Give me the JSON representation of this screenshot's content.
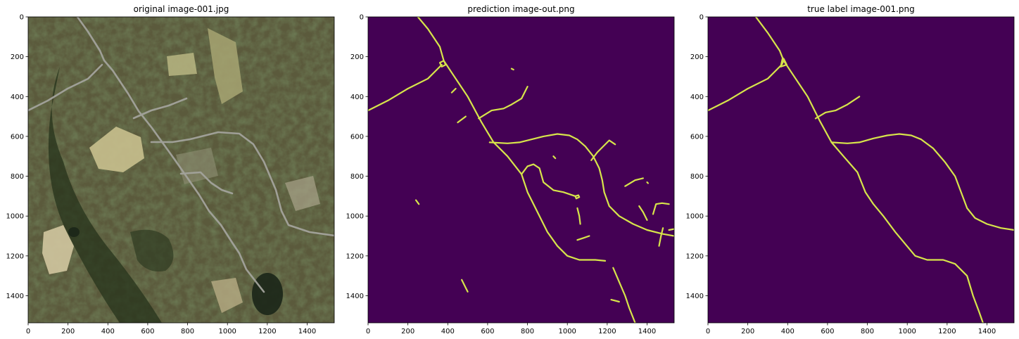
{
  "chart_data": [
    {
      "type": "image",
      "title": "original image-001.jpg",
      "xlim": [
        0,
        1536
      ],
      "ylim": [
        1536,
        0
      ],
      "xticks": [
        0,
        200,
        400,
        600,
        800,
        1000,
        1200,
        1400
      ],
      "yticks": [
        0,
        200,
        400,
        600,
        800,
        1000,
        1200,
        1400
      ],
      "content": "aerial photograph",
      "colors": {
        "field": "#c9c08e",
        "forest": "#3c4a2a",
        "roads": "#9a9a95"
      }
    },
    {
      "type": "image",
      "title": "prediction image-out.png",
      "xlim": [
        0,
        1536
      ],
      "ylim": [
        1536,
        0
      ],
      "xticks": [
        0,
        200,
        400,
        600,
        800,
        1000,
        1200,
        1400
      ],
      "yticks": [
        0,
        200,
        400,
        600,
        800,
        1000,
        1200,
        1400
      ],
      "colors": {
        "background": "#440154",
        "road": "#d7e54a"
      },
      "roads": [
        [
          [
            250,
            0
          ],
          [
            300,
            60
          ],
          [
            360,
            150
          ],
          [
            380,
            220
          ],
          [
            420,
            280
          ],
          [
            500,
            400
          ],
          [
            570,
            530
          ],
          [
            600,
            580
          ],
          [
            630,
            630
          ],
          [
            700,
            700
          ],
          [
            770,
            790
          ],
          [
            800,
            880
          ],
          [
            860,
            1000
          ],
          [
            900,
            1080
          ],
          [
            950,
            1150
          ],
          [
            1000,
            1200
          ],
          [
            1060,
            1220
          ],
          [
            1140,
            1220
          ],
          [
            1190,
            1225
          ]
        ],
        [
          [
            0,
            470
          ],
          [
            100,
            420
          ],
          [
            200,
            360
          ],
          [
            300,
            310
          ],
          [
            370,
            240
          ]
        ],
        [
          [
            380,
            220
          ],
          [
            390,
            240
          ],
          [
            370,
            250
          ],
          [
            360,
            230
          ],
          [
            380,
            220
          ]
        ],
        [
          [
            555,
            510
          ],
          [
            620,
            470
          ],
          [
            680,
            460
          ],
          [
            720,
            440
          ],
          [
            770,
            410
          ],
          [
            800,
            350
          ]
        ],
        [
          [
            610,
            630
          ],
          [
            700,
            635
          ],
          [
            760,
            630
          ],
          [
            820,
            615
          ],
          [
            880,
            600
          ],
          [
            950,
            588
          ],
          [
            1010,
            595
          ],
          [
            1050,
            615
          ],
          [
            1090,
            650
          ],
          [
            1130,
            700
          ],
          [
            1160,
            760
          ],
          [
            1175,
            820
          ],
          [
            1185,
            880
          ],
          [
            1210,
            950
          ],
          [
            1260,
            1000
          ],
          [
            1330,
            1040
          ],
          [
            1400,
            1070
          ],
          [
            1480,
            1090
          ],
          [
            1536,
            1100
          ]
        ],
        [
          [
            770,
            790
          ],
          [
            800,
            750
          ],
          [
            830,
            740
          ],
          [
            860,
            760
          ],
          [
            880,
            830
          ],
          [
            930,
            870
          ],
          [
            980,
            880
          ],
          [
            1040,
            900
          ]
        ],
        [
          [
            1040,
            900
          ],
          [
            1055,
            895
          ],
          [
            1060,
            905
          ],
          [
            1045,
            912
          ],
          [
            1040,
            900
          ]
        ],
        [
          [
            1230,
            1260
          ],
          [
            1260,
            1330
          ],
          [
            1290,
            1400
          ],
          [
            1310,
            1460
          ],
          [
            1340,
            1536
          ]
        ],
        [
          [
            1120,
            720
          ],
          [
            1150,
            680
          ],
          [
            1180,
            650
          ],
          [
            1210,
            620
          ],
          [
            1240,
            640
          ]
        ],
        [
          [
            1290,
            850
          ],
          [
            1340,
            820
          ],
          [
            1380,
            810
          ]
        ],
        [
          [
            1430,
            990
          ],
          [
            1445,
            940
          ],
          [
            1475,
            935
          ],
          [
            1510,
            940
          ]
        ],
        [
          [
            1050,
            1120
          ],
          [
            1080,
            1110
          ],
          [
            1110,
            1100
          ]
        ],
        [
          [
            1050,
            960
          ],
          [
            1060,
            1000
          ],
          [
            1065,
            1040
          ]
        ],
        [
          [
            1360,
            950
          ],
          [
            1380,
            980
          ],
          [
            1400,
            1020
          ]
        ],
        [
          [
            1510,
            1070
          ],
          [
            1536,
            1065
          ]
        ],
        [
          [
            1480,
            1060
          ],
          [
            1470,
            1100
          ],
          [
            1460,
            1150
          ]
        ],
        [
          [
            450,
            530
          ],
          [
            490,
            500
          ]
        ],
        [
          [
            420,
            380
          ],
          [
            440,
            360
          ]
        ],
        [
          [
            470,
            1320
          ],
          [
            490,
            1360
          ],
          [
            500,
            1380
          ]
        ],
        [
          [
            240,
            920
          ],
          [
            255,
            940
          ]
        ],
        [
          [
            1220,
            1420
          ],
          [
            1260,
            1430
          ]
        ],
        [
          [
            720,
            260
          ],
          [
            730,
            265
          ]
        ],
        [
          [
            930,
            700
          ],
          [
            940,
            710
          ]
        ],
        [
          [
            1400,
            830
          ],
          [
            1405,
            835
          ]
        ]
      ]
    },
    {
      "type": "image",
      "title": "true label image-001.png",
      "xlim": [
        0,
        1536
      ],
      "ylim": [
        1536,
        0
      ],
      "xticks": [
        0,
        200,
        400,
        600,
        800,
        1000,
        1200,
        1400
      ],
      "yticks": [
        0,
        200,
        400,
        600,
        800,
        1000,
        1200,
        1400
      ],
      "colors": {
        "background": "#440154",
        "road": "#d7e54a"
      },
      "roads": [
        [
          [
            240,
            0
          ],
          [
            300,
            80
          ],
          [
            360,
            170
          ],
          [
            380,
            220
          ],
          [
            420,
            280
          ],
          [
            500,
            400
          ],
          [
            560,
            520
          ],
          [
            620,
            630
          ],
          [
            680,
            700
          ],
          [
            750,
            780
          ],
          [
            790,
            880
          ],
          [
            830,
            940
          ],
          [
            880,
            1000
          ],
          [
            940,
            1080
          ],
          [
            990,
            1140
          ],
          [
            1040,
            1200
          ],
          [
            1100,
            1220
          ],
          [
            1180,
            1220
          ],
          [
            1240,
            1240
          ],
          [
            1300,
            1300
          ],
          [
            1330,
            1400
          ],
          [
            1360,
            1480
          ],
          [
            1380,
            1536
          ]
        ],
        [
          [
            0,
            470
          ],
          [
            100,
            420
          ],
          [
            200,
            360
          ],
          [
            300,
            310
          ],
          [
            370,
            240
          ],
          [
            380,
            220
          ]
        ],
        [
          [
            380,
            210
          ],
          [
            395,
            240
          ],
          [
            365,
            250
          ],
          [
            375,
            205
          ]
        ],
        [
          [
            540,
            510
          ],
          [
            590,
            480
          ],
          [
            640,
            470
          ],
          [
            700,
            440
          ],
          [
            760,
            400
          ]
        ],
        [
          [
            620,
            630
          ],
          [
            700,
            635
          ],
          [
            760,
            630
          ],
          [
            830,
            610
          ],
          [
            900,
            595
          ],
          [
            960,
            588
          ],
          [
            1020,
            595
          ],
          [
            1070,
            615
          ],
          [
            1130,
            660
          ],
          [
            1190,
            730
          ],
          [
            1240,
            800
          ],
          [
            1270,
            880
          ],
          [
            1300,
            960
          ],
          [
            1340,
            1010
          ],
          [
            1400,
            1040
          ],
          [
            1470,
            1060
          ],
          [
            1536,
            1070
          ]
        ]
      ]
    }
  ]
}
